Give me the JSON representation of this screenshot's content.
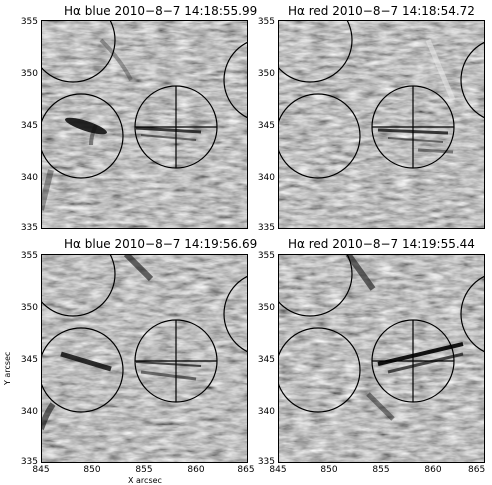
{
  "panels": [
    {
      "title": "Hα blue 2010−8−7 14:18:55.99",
      "filter_id": "n1"
    },
    {
      "title": "Hα red 2010−8−7 14:18:54.72",
      "filter_id": "n2"
    },
    {
      "title": "Hα blue 2010−8−7 14:19:56.69",
      "filter_id": "n3"
    },
    {
      "title": "Hα red 2010−8−7 14:19:55.44",
      "filter_id": "n4"
    }
  ],
  "axes": {
    "y_ticks": [
      "335",
      "340",
      "345",
      "350",
      "355"
    ],
    "x_ticks": [
      "845",
      "850",
      "855",
      "860",
      "865"
    ],
    "x_title": "X arcsec",
    "y_title": "Y arcsec"
  },
  "colors": {
    "background": "#ffffff",
    "image_gray": "#9a9a9a",
    "line": "#000000"
  }
}
